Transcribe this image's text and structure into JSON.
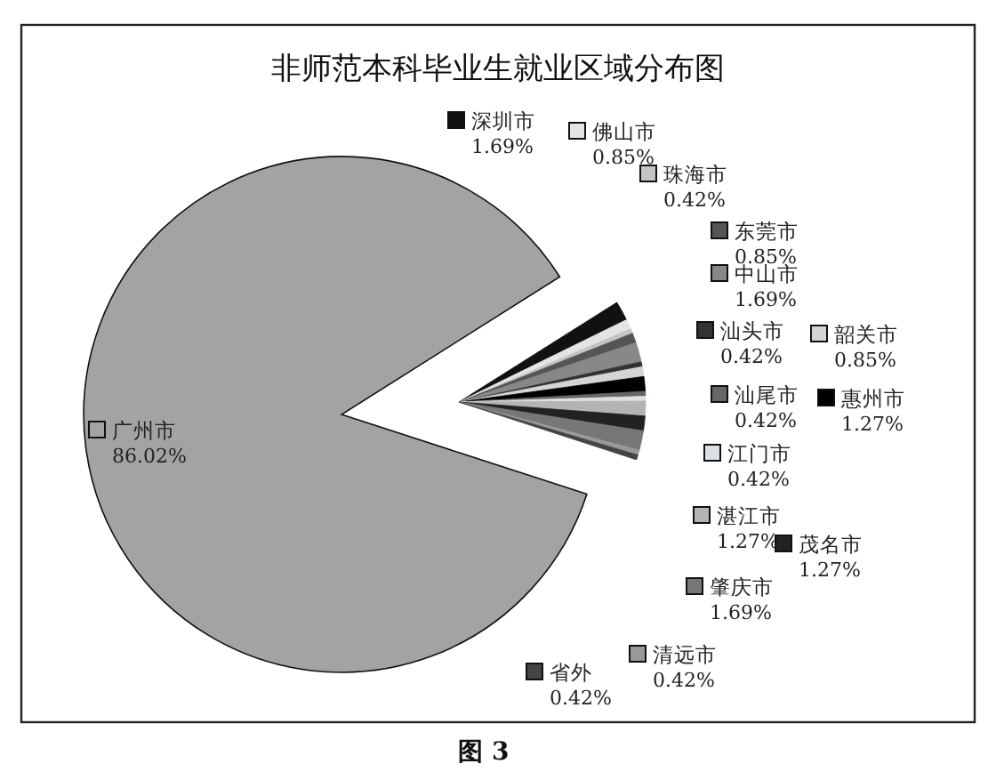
{
  "chart_data": {
    "type": "pie",
    "title": "非师范本科毕业生就业区域分布图",
    "categories": [
      "广州市",
      "深圳市",
      "佛山市",
      "珠海市",
      "东莞市",
      "中山市",
      "汕头市",
      "韶关市",
      "惠州市",
      "汕尾市",
      "江门市",
      "湛江市",
      "茂名市",
      "肇庆市",
      "清远市",
      "省外"
    ],
    "values": [
      86.02,
      1.69,
      0.85,
      0.42,
      0.85,
      1.69,
      0.42,
      0.85,
      1.27,
      0.42,
      0.42,
      1.27,
      1.27,
      1.69,
      0.42,
      0.42
    ],
    "colors": [
      "#a3a3a3",
      "#111111",
      "#e4e4e4",
      "#c4c4c4",
      "#555555",
      "#888888",
      "#333333",
      "#d4d4d4",
      "#000000",
      "#666666",
      "#d8e0e8",
      "#b4b4b4",
      "#222222",
      "#777777",
      "#999999",
      "#444444"
    ],
    "value_labels": [
      "86.02%",
      "1.69%",
      "0.85%",
      "0.42%",
      "0.85%",
      "1.69%",
      "0.42%",
      "0.85%",
      "1.27%",
      "0.42%",
      "0.42%",
      "1.27%",
      "1.27%",
      "1.69%",
      "0.42%",
      "0.42%"
    ],
    "legend": "right",
    "annotations": [
      "图 3"
    ]
  }
}
